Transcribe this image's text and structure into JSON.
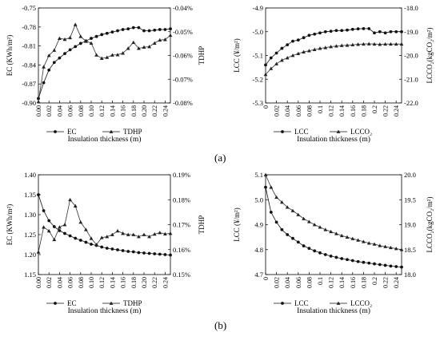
{
  "panels": [
    {
      "label": "(a)"
    },
    {
      "label": "(b)"
    }
  ],
  "chart_data": [
    {
      "id": "a-left",
      "type": "line",
      "xlabel": "Insulation thickness (m)",
      "ylabel": "EC (KWh/m²)",
      "y2label": "TDHP",
      "x_ticks": [
        "0.00",
        "0.02",
        "0.04",
        "0.06",
        "0.08",
        "0.10",
        "0.12",
        "0.14",
        "0.16",
        "0.18",
        "0.20",
        "0.22",
        "0.24"
      ],
      "y_ticks": [
        "-0.75",
        "-0.78",
        "-0.81",
        "-0.84",
        "-0.87",
        "-0.90"
      ],
      "y2_ticks": [
        "-0.04%",
        "-0.05%",
        "-0.06%",
        "-0.07%",
        "-0.08%"
      ],
      "xlim": [
        0,
        0.25
      ],
      "ylim": [
        -0.9,
        -0.75
      ],
      "y2lim": [
        -0.08,
        -0.04
      ],
      "series": [
        {
          "name": "EC",
          "axis": "left",
          "marker": "circle",
          "x": [
            0,
            0.01,
            0.02,
            0.03,
            0.04,
            0.05,
            0.06,
            0.07,
            0.08,
            0.09,
            0.1,
            0.11,
            0.12,
            0.13,
            0.14,
            0.15,
            0.16,
            0.17,
            0.18,
            0.19,
            0.2,
            0.21,
            0.22,
            0.23,
            0.24,
            0.25
          ],
          "values": [
            -0.893,
            -0.868,
            -0.848,
            -0.836,
            -0.829,
            -0.822,
            -0.816,
            -0.811,
            -0.806,
            -0.802,
            -0.798,
            -0.795,
            -0.792,
            -0.79,
            -0.788,
            -0.786,
            -0.784,
            -0.783,
            -0.781,
            -0.781,
            -0.786,
            -0.786,
            -0.785,
            -0.784,
            -0.784,
            -0.783
          ]
        },
        {
          "name": "TDHP",
          "axis": "right",
          "marker": "triangle",
          "x": [
            0,
            0.01,
            0.02,
            0.03,
            0.04,
            0.05,
            0.06,
            0.07,
            0.08,
            0.09,
            0.1,
            0.11,
            0.12,
            0.13,
            0.14,
            0.15,
            0.16,
            0.17,
            0.18,
            0.19,
            0.2,
            0.21,
            0.22,
            0.23,
            0.24,
            0.25
          ],
          "values": [
            -0.0795,
            -0.0648,
            -0.06,
            -0.0578,
            -0.0528,
            -0.0532,
            -0.0525,
            -0.047,
            -0.052,
            -0.054,
            -0.0548,
            -0.0598,
            -0.0612,
            -0.0608,
            -0.0598,
            -0.0597,
            -0.059,
            -0.057,
            -0.0545,
            -0.057,
            -0.0565,
            -0.0563,
            -0.0548,
            -0.0535,
            -0.0533,
            -0.0515
          ]
        }
      ]
    },
    {
      "id": "a-right",
      "type": "line",
      "xlabel": "Insulation thickness (m)",
      "ylabel": "LCC (¥/m²)",
      "y2label": "LCCO₂(kgCO₂/m²)",
      "x_ticks": [
        "0",
        "0.02",
        "0.04",
        "0.06",
        "0.08",
        "0.1",
        "0.12",
        "0.14",
        "0.16",
        "0.18",
        "0.2",
        "0.22",
        "0.24"
      ],
      "y_ticks": [
        "-4.9",
        "-5.0",
        "-5.1",
        "-5.2",
        "-5.3"
      ],
      "y2_ticks": [
        "-18.0",
        "-19.0",
        "-20.0",
        "-21.0",
        "-22.0"
      ],
      "xlim": [
        0,
        0.25
      ],
      "ylim": [
        -5.3,
        -4.9
      ],
      "y2lim": [
        -22.0,
        -18.0
      ],
      "series": [
        {
          "name": "LCC",
          "axis": "left",
          "marker": "circle",
          "x": [
            0,
            0.01,
            0.02,
            0.03,
            0.04,
            0.05,
            0.06,
            0.07,
            0.08,
            0.09,
            0.1,
            0.11,
            0.12,
            0.13,
            0.14,
            0.15,
            0.16,
            0.17,
            0.18,
            0.19,
            0.2,
            0.21,
            0.22,
            0.23,
            0.24,
            0.25
          ],
          "values": [
            -5.14,
            -5.11,
            -5.09,
            -5.07,
            -5.055,
            -5.04,
            -5.035,
            -5.025,
            -5.015,
            -5.01,
            -5.005,
            -5.0,
            -4.998,
            -4.995,
            -4.995,
            -4.993,
            -4.99,
            -4.988,
            -4.987,
            -4.987,
            -5.005,
            -5.0,
            -5.005,
            -5.0,
            -5.0,
            -5.0
          ]
        },
        {
          "name": "LCCO₂",
          "axis": "right",
          "marker": "triangle",
          "x": [
            0,
            0.01,
            0.02,
            0.03,
            0.04,
            0.05,
            0.06,
            0.07,
            0.08,
            0.09,
            0.1,
            0.11,
            0.12,
            0.13,
            0.14,
            0.15,
            0.16,
            0.17,
            0.18,
            0.19,
            0.2,
            0.21,
            0.22,
            0.23,
            0.24,
            0.25
          ],
          "values": [
            -20.8,
            -20.55,
            -20.35,
            -20.2,
            -20.1,
            -20.0,
            -19.92,
            -19.85,
            -19.8,
            -19.75,
            -19.7,
            -19.67,
            -19.63,
            -19.6,
            -19.58,
            -19.57,
            -19.55,
            -19.53,
            -19.52,
            -19.51,
            -19.52,
            -19.53,
            -19.52,
            -19.52,
            -19.52,
            -19.52
          ]
        }
      ]
    },
    {
      "id": "b-left",
      "type": "line",
      "xlabel": "Insulation thickness (m)",
      "ylabel": "EC (KWh/m²)",
      "y2label": "TDHP",
      "x_ticks": [
        "0.00",
        "0.02",
        "0.04",
        "0.06",
        "0.08",
        "0.10",
        "0.12",
        "0.14",
        "0.16",
        "0.18",
        "0.20",
        "0.22",
        "0.24"
      ],
      "y_ticks": [
        "1.40",
        "1.35",
        "1.30",
        "1.25",
        "1.20",
        "1.15"
      ],
      "y2_ticks": [
        "0.19%",
        "0.18%",
        "0.17%",
        "0.16%",
        "0.15%"
      ],
      "xlim": [
        0,
        0.25
      ],
      "ylim": [
        1.15,
        1.4
      ],
      "y2lim": [
        0.15,
        0.19
      ],
      "series": [
        {
          "name": "EC",
          "axis": "left",
          "marker": "circle",
          "x": [
            0,
            0.01,
            0.02,
            0.03,
            0.04,
            0.05,
            0.06,
            0.07,
            0.08,
            0.09,
            0.1,
            0.11,
            0.12,
            0.13,
            0.14,
            0.15,
            0.16,
            0.17,
            0.18,
            0.19,
            0.2,
            0.21,
            0.22,
            0.23,
            0.24,
            0.25
          ],
          "values": [
            1.35,
            1.31,
            1.285,
            1.27,
            1.26,
            1.253,
            1.247,
            1.241,
            1.236,
            1.231,
            1.226,
            1.223,
            1.219,
            1.216,
            1.214,
            1.212,
            1.21,
            1.208,
            1.207,
            1.205,
            1.204,
            1.203,
            1.202,
            1.201,
            1.2,
            1.199
          ]
        },
        {
          "name": "TDHP",
          "axis": "right",
          "marker": "triangle",
          "x": [
            0,
            0.01,
            0.02,
            0.03,
            0.04,
            0.05,
            0.06,
            0.07,
            0.08,
            0.09,
            0.1,
            0.11,
            0.12,
            0.13,
            0.14,
            0.15,
            0.16,
            0.17,
            0.18,
            0.19,
            0.2,
            0.21,
            0.22,
            0.23,
            0.24,
            0.25
          ],
          "values": [
            0.159,
            0.169,
            0.1675,
            0.164,
            0.169,
            0.17,
            0.18,
            0.1775,
            0.171,
            0.168,
            0.1645,
            0.162,
            0.1648,
            0.1652,
            0.166,
            0.1675,
            0.1665,
            0.166,
            0.166,
            0.1652,
            0.166,
            0.1652,
            0.1662,
            0.1668,
            0.1663,
            0.1665
          ]
        }
      ]
    },
    {
      "id": "b-right",
      "type": "line",
      "xlabel": "Insulation thickness (m)",
      "ylabel": "LCC (¥/m²)",
      "y2label": "LCCO₂(kgCO₂/m²)",
      "x_ticks": [
        "0",
        "0.02",
        "0.04",
        "0.06",
        "0.08",
        "0.1",
        "0.12",
        "0.14",
        "0.16",
        "0.18",
        "0.2",
        "0.22",
        "0.24"
      ],
      "y_ticks": [
        "5.1",
        "5.0",
        "4.9",
        "4.8",
        "4.7"
      ],
      "y2_ticks": [
        "20.0",
        "19.5",
        "19.0",
        "18.5",
        "18.0"
      ],
      "xlim": [
        0,
        0.25
      ],
      "ylim": [
        4.7,
        5.1
      ],
      "y2lim": [
        18.0,
        20.0
      ],
      "series": [
        {
          "name": "LCC",
          "axis": "left",
          "marker": "circle",
          "x": [
            0,
            0.01,
            0.02,
            0.03,
            0.04,
            0.05,
            0.06,
            0.07,
            0.08,
            0.09,
            0.1,
            0.11,
            0.12,
            0.13,
            0.14,
            0.15,
            0.16,
            0.17,
            0.18,
            0.19,
            0.2,
            0.21,
            0.22,
            0.23,
            0.24,
            0.25
          ],
          "values": [
            5.05,
            4.95,
            4.91,
            4.88,
            4.86,
            4.845,
            4.83,
            4.815,
            4.805,
            4.795,
            4.787,
            4.78,
            4.774,
            4.769,
            4.764,
            4.76,
            4.756,
            4.752,
            4.749,
            4.746,
            4.743,
            4.74,
            4.737,
            4.734,
            4.732,
            4.73
          ]
        },
        {
          "name": "LCCO₂",
          "axis": "right",
          "marker": "triangle",
          "x": [
            0,
            0.01,
            0.02,
            0.03,
            0.04,
            0.05,
            0.06,
            0.07,
            0.08,
            0.09,
            0.1,
            0.11,
            0.12,
            0.13,
            0.14,
            0.15,
            0.16,
            0.17,
            0.18,
            0.19,
            0.2,
            0.21,
            0.22,
            0.23,
            0.24,
            0.25
          ],
          "values": [
            20.0,
            19.75,
            19.55,
            19.45,
            19.35,
            19.28,
            19.2,
            19.12,
            19.06,
            19.0,
            18.95,
            18.9,
            18.86,
            18.82,
            18.78,
            18.75,
            18.72,
            18.69,
            18.66,
            18.63,
            18.61,
            18.58,
            18.56,
            18.54,
            18.52,
            18.5
          ]
        }
      ]
    }
  ]
}
